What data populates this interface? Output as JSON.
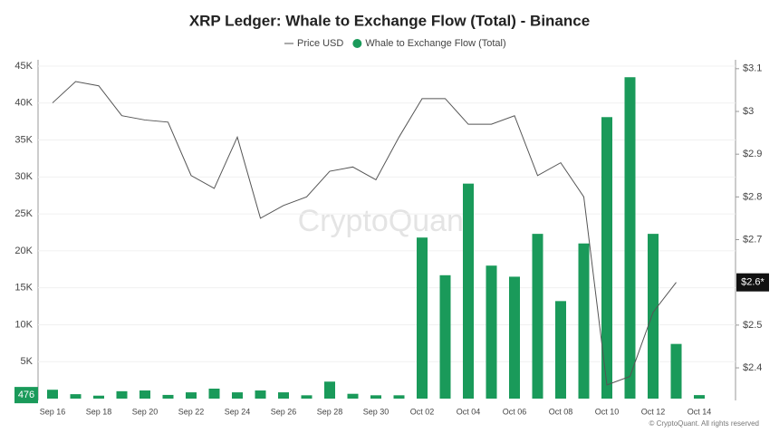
{
  "chart_data": {
    "type": "bar-line",
    "title": "XRP Ledger: Whale to Exchange Flow (Total) - Binance",
    "categories": [
      "Sep 16",
      null,
      "Sep 18",
      null,
      "Sep 20",
      null,
      "Sep 22",
      null,
      "Sep 24",
      null,
      "Sep 26",
      null,
      "Sep 28",
      null,
      "Sep 30",
      null,
      "Oct 02",
      null,
      "Oct 04",
      null,
      "Oct 06",
      null,
      "Oct 08",
      null,
      "Oct 10",
      null,
      "Oct 12",
      null,
      "Oct 14"
    ],
    "series": [
      {
        "name": "Price USD",
        "type": "line",
        "axis": "y2",
        "color": "#555555",
        "values": [
          3.02,
          3.07,
          3.06,
          2.99,
          2.98,
          2.975,
          2.85,
          2.82,
          2.94,
          2.75,
          2.78,
          2.8,
          2.86,
          2.87,
          2.84,
          2.94,
          3.03,
          3.03,
          2.97,
          2.97,
          2.99,
          2.85,
          2.88,
          2.8,
          2.36,
          2.38,
          2.53,
          2.6,
          null
        ]
      },
      {
        "name": "Whale to Exchange Flow (Total)",
        "type": "bar",
        "color": "#1a9a5a",
        "values": [
          1200,
          600,
          400,
          1000,
          1100,
          500,
          850,
          1350,
          850,
          1100,
          850,
          450,
          2300,
          650,
          450,
          450,
          21800,
          16700,
          29100,
          18000,
          16500,
          22300,
          13200,
          21000,
          38100,
          43500,
          22300,
          7400,
          476
        ]
      }
    ],
    "ylim": [
      0,
      45000
    ],
    "yticks": [
      {
        "value": 5000,
        "label": "5K"
      },
      {
        "value": 10000,
        "label": "10K"
      },
      {
        "value": 15000,
        "label": "15K"
      },
      {
        "value": 20000,
        "label": "20K"
      },
      {
        "value": 25000,
        "label": "25K"
      },
      {
        "value": 30000,
        "label": "30K"
      },
      {
        "value": 35000,
        "label": "35K"
      },
      {
        "value": 40000,
        "label": "40K"
      },
      {
        "value": 45000,
        "label": "45K"
      }
    ],
    "y2lim": [
      2.328,
      3.106
    ],
    "y2ticks": [
      {
        "value": 2.4,
        "label": "$2.4"
      },
      {
        "value": 2.5,
        "label": "$2.5"
      },
      {
        "value": 2.7,
        "label": "$2.7"
      },
      {
        "value": 2.8,
        "label": "$2.8"
      },
      {
        "value": 2.9,
        "label": "$2.9"
      },
      {
        "value": 3,
        "label": "$3"
      },
      {
        "value": 3.1,
        "label": "$3.1"
      }
    ],
    "current_y": {
      "value": 476,
      "label": "476"
    },
    "current_y2": {
      "value": 2.6,
      "label": "$2.6*"
    },
    "grid": true,
    "watermark": "CryptoQuant",
    "credit": "© CryptoQuant. All rights reserved"
  }
}
